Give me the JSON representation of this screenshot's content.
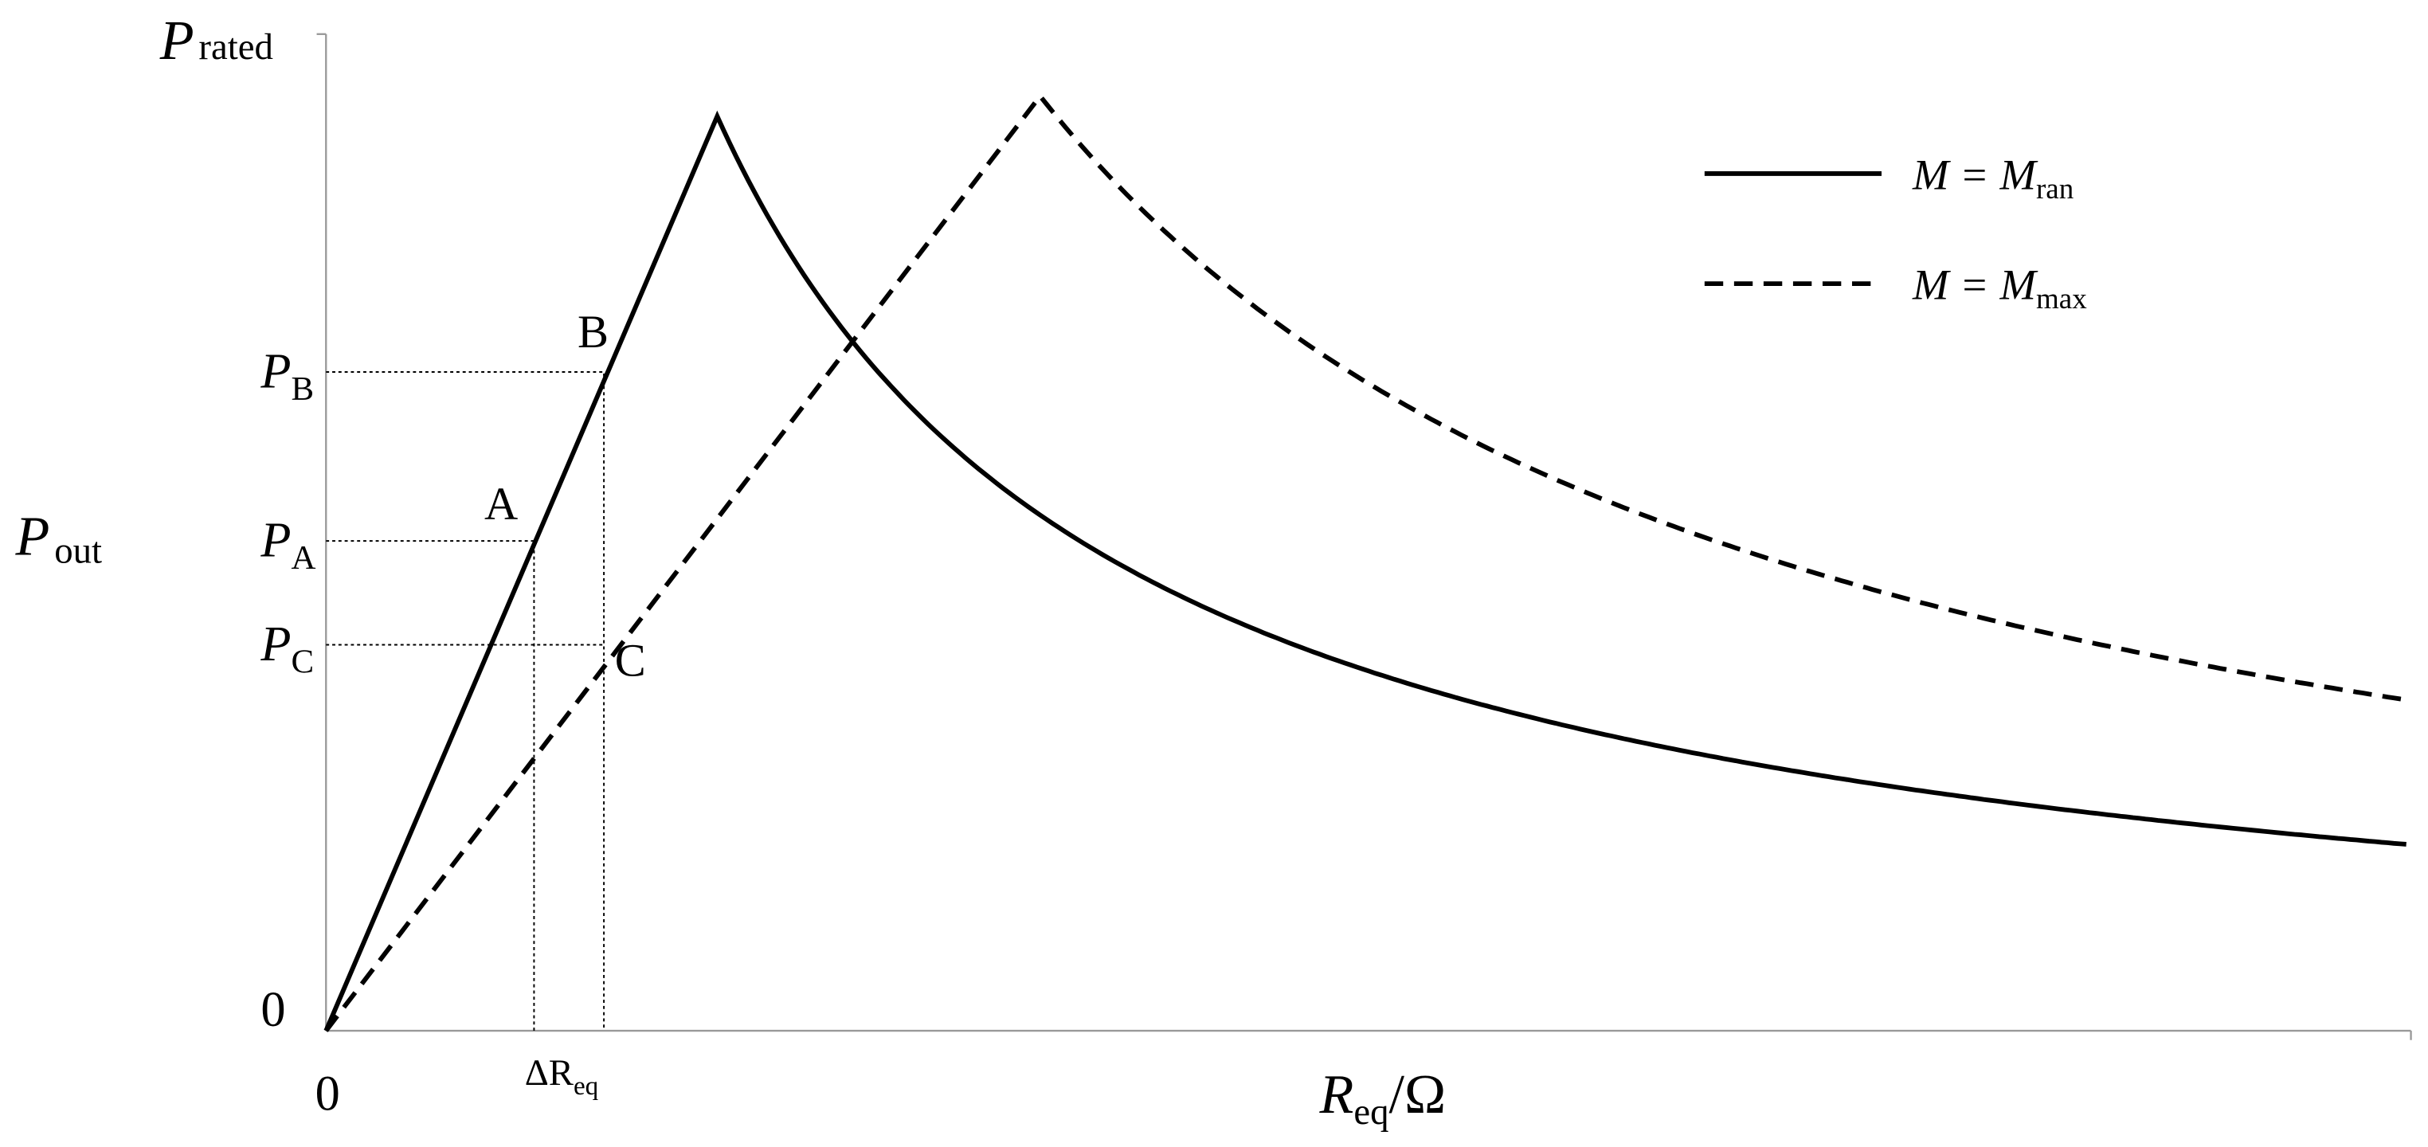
{
  "y_axis": {
    "label": {
      "main": "P",
      "sub": "rated"
    },
    "origin": "0"
  },
  "y_side_label": {
    "main": "P",
    "sub": "out"
  },
  "x_axis": {
    "origin": "0",
    "label": {
      "main": "R",
      "sub": "eq",
      "unit": "/Ω"
    }
  },
  "levels": [
    {
      "main": "P",
      "sub": "B"
    },
    {
      "main": "P",
      "sub": "A"
    },
    {
      "main": "P",
      "sub": "C"
    }
  ],
  "points": [
    "B",
    "A",
    "C"
  ],
  "delta": {
    "main": "ΔR",
    "sub": "eq"
  },
  "legend": [
    {
      "main": "M = M",
      "sub": "ran"
    },
    {
      "main": "M = M",
      "sub": "max"
    }
  ]
}
